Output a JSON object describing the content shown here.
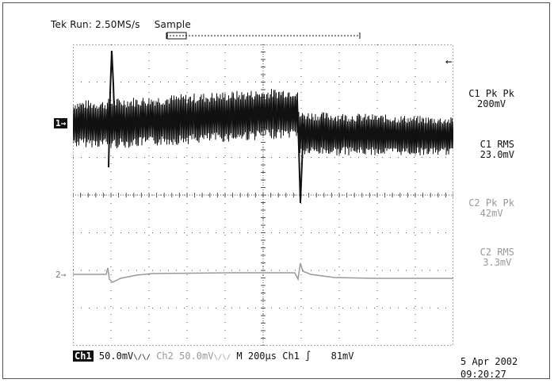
{
  "header": {
    "status": "Tek Run: 2.50MS/s",
    "mode": "Sample"
  },
  "measurements": [
    {
      "label": "C1 Pk  Pk",
      "value": "200mV",
      "channel": 1
    },
    {
      "label": "C1 RMS",
      "value": "23.0mV",
      "channel": 1
    },
    {
      "label": "C2 Pk  Pk",
      "value": "42mV",
      "channel": 2
    },
    {
      "label": "C2 RMS",
      "value": "3.3mV",
      "channel": 2
    }
  ],
  "markers": {
    "ch1": "1→",
    "ch2": "2→",
    "trigger": "←"
  },
  "bottom": {
    "ch1_tag": "Ch1",
    "ch1_scale": "50.0mV",
    "ch1_coupling": "\\/\\/",
    "ch2_label": "Ch2",
    "ch2_scale": "50.0mV",
    "ch2_coupling": "\\/\\/",
    "timebase": "M 200µs",
    "trigger_source": "Ch1",
    "trigger_slope": "∫",
    "trigger_level": "81mV"
  },
  "timestamp": {
    "date": "5 Apr 2002",
    "time": "09:20:27"
  },
  "colors": {
    "ch1": "#111111",
    "ch2": "#999999",
    "grid": "#555555"
  }
}
